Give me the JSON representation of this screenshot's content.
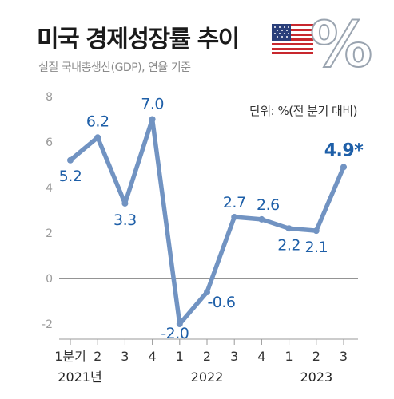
{
  "title": "미국 경제성장률 추이",
  "subtitle": "실질 국내총생산(GDP), 연율 기준",
  "unit_note": "단위: %(전 분기 대비)",
  "badge_symbol": "%",
  "icons": {
    "flag": "us-flag-icon"
  },
  "colors": {
    "line": "#7193c2",
    "label": "#1e5fa8",
    "axis": "#9a9a9a",
    "zero": "#555555"
  },
  "chart_data": {
    "type": "line",
    "title": "미국 경제성장률 추이",
    "subtitle": "실질 국내총생산(GDP), 연율 기준",
    "ylim": [
      -2,
      8
    ],
    "yticks": [
      -2,
      0,
      2,
      4,
      6,
      8
    ],
    "categories": [
      "1분기",
      "2",
      "3",
      "4",
      "1",
      "2",
      "3",
      "4",
      "1",
      "2",
      "3"
    ],
    "year_labels": [
      {
        "label": "2021년",
        "index": 0
      },
      {
        "label": "2022",
        "index": 5
      },
      {
        "label": "2023",
        "index": 9
      }
    ],
    "series": [
      {
        "values": [
          5.2,
          6.2,
          3.3,
          7.0,
          -2.0,
          -0.6,
          2.7,
          2.6,
          2.2,
          2.1,
          4.9
        ],
        "labels": [
          "5.2",
          "6.2",
          "3.3",
          "7.0",
          "-2.0",
          "-0.6",
          "2.7",
          "2.6",
          "2.2",
          "2.1",
          "4.9*"
        ]
      }
    ],
    "grid": false
  }
}
